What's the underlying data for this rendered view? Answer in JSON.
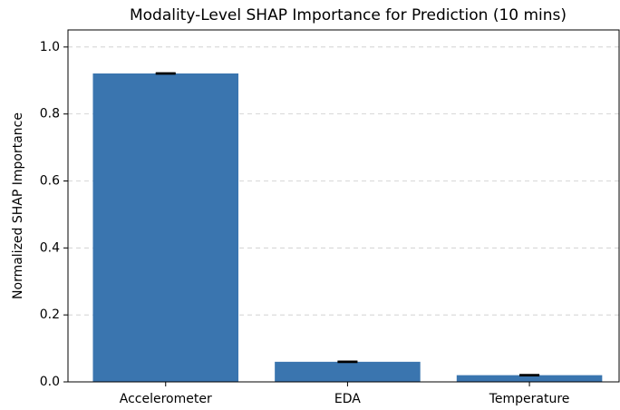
{
  "chart_data": {
    "type": "bar",
    "title": "Modality-Level SHAP Importance for Prediction (10 mins)",
    "ylabel": "Normalized SHAP Importance",
    "categories": [
      "Accelerometer",
      "EDA",
      "Temperature"
    ],
    "values": [
      0.921,
      0.06,
      0.02
    ],
    "errors": [
      0.001,
      0.001,
      0.001
    ],
    "color": "#3a75af",
    "ylim": [
      0,
      1.051
    ],
    "yticks": [
      {
        "value": 0,
        "label": "0.0"
      },
      0.2,
      0.4,
      0.6,
      0.8,
      {
        "value": 1.0,
        "label": "1.0"
      }
    ],
    "grid": true
  }
}
